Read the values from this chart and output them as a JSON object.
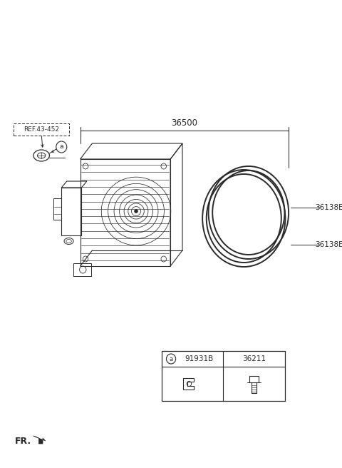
{
  "bg_color": "#ffffff",
  "text_color": "#2a2a2a",
  "line_color": "#2a2a2a",
  "part_numbers": {
    "main": "36500",
    "ring1": "36138E",
    "ring2": "36138E",
    "ref": "REF.43-452",
    "label_a": "91931B",
    "label_b": "36211"
  },
  "fr_label": "FR.",
  "fig_size": [
    4.8,
    6.56
  ],
  "dpi": 100
}
